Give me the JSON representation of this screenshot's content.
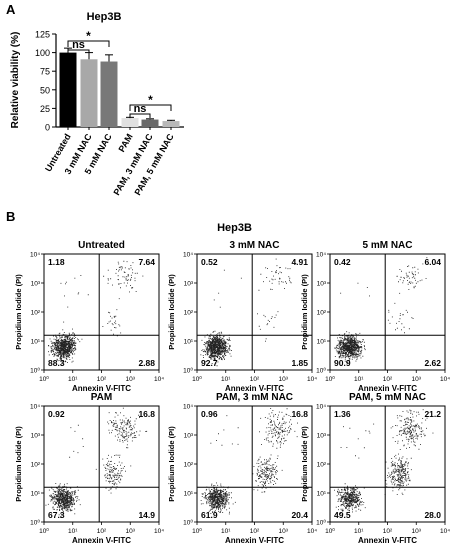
{
  "panel_a": {
    "letter": "A"
  },
  "panel_b": {
    "letter": "B",
    "title": "Hep3B"
  },
  "colors": {
    "untreated": "#000000",
    "nac3": "#a8a8a8",
    "nac5": "#787878",
    "pam": "#e0e0e0",
    "pam_nac3": "#6a6a6a",
    "pam_nac5": "#b8b8b8",
    "dots": "#222222"
  },
  "chart_data": [
    {
      "type": "bar",
      "title": "Hep3B",
      "ylabel": "Relative viability (%)",
      "xlabel": "",
      "ylim": [
        0,
        125
      ],
      "yticks": [
        0,
        25,
        50,
        75,
        100,
        125
      ],
      "categories": [
        "Untreated",
        "3 mM NAC",
        "5 mM NAC",
        "PAM",
        "PAM, 3 mM NAC",
        "PAM, 5 mM NAC"
      ],
      "values": [
        100,
        91,
        88,
        12,
        10,
        8
      ],
      "errors": [
        6,
        9,
        9,
        1,
        1,
        1
      ],
      "annotations": [
        {
          "label": "*",
          "between": [
            0,
            2
          ]
        },
        {
          "label": "ns",
          "between": [
            0,
            1
          ]
        },
        {
          "label": "*",
          "between": [
            3,
            5
          ]
        },
        {
          "label": "ns",
          "between": [
            3,
            4
          ]
        }
      ],
      "grid": false
    },
    {
      "type": "scatter",
      "title": "Hep3B",
      "xlabel": "Annexin V-FITC",
      "ylabel": "Propidium Iodide (PI)",
      "scale": "log",
      "xlim": [
        1,
        10000
      ],
      "ylim": [
        1,
        10000
      ],
      "tick_labels": [
        "10⁰",
        "10¹",
        "10²",
        "10³",
        "10⁴"
      ],
      "plots": [
        {
          "title": "Untreated",
          "quadrants": {
            "upper_left": "1.18",
            "upper_right": "7.64",
            "lower_left": "88.3",
            "lower_right": "2.88"
          }
        },
        {
          "title": "3 mM NAC",
          "quadrants": {
            "upper_left": "0.52",
            "upper_right": "4.91",
            "lower_left": "92.7",
            "lower_right": "1.85"
          }
        },
        {
          "title": "5 mM NAC",
          "quadrants": {
            "upper_left": "0.42",
            "upper_right": "6.04",
            "lower_left": "90.9",
            "lower_right": "2.62"
          }
        },
        {
          "title": "PAM",
          "quadrants": {
            "upper_left": "0.92",
            "upper_right": "16.8",
            "lower_left": "67.3",
            "lower_right": "14.9"
          }
        },
        {
          "title": "PAM, 3 mM NAC",
          "quadrants": {
            "upper_left": "0.96",
            "upper_right": "16.8",
            "lower_left": "61.9",
            "lower_right": "20.4"
          }
        },
        {
          "title": "PAM, 5 mM NAC",
          "quadrants": {
            "upper_left": "1.36",
            "upper_right": "21.2",
            "lower_left": "49.5",
            "lower_right": "28.0"
          }
        }
      ]
    }
  ]
}
